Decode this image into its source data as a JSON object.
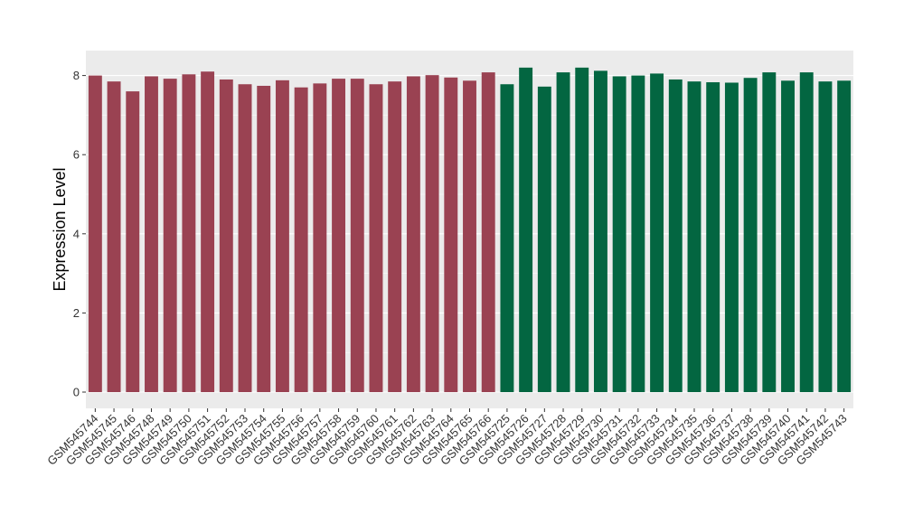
{
  "chart_data": {
    "type": "bar",
    "title": "",
    "xlabel": "",
    "ylabel": "Expression Level",
    "ylim": [
      0,
      8.6
    ],
    "yticks": [
      0,
      2,
      4,
      6,
      8
    ],
    "grid": true,
    "legend": "none",
    "categories": [
      "GSM545744",
      "GSM545745",
      "GSM545746",
      "GSM545748",
      "GSM545749",
      "GSM545750",
      "GSM545751",
      "GSM545752",
      "GSM545753",
      "GSM545754",
      "GSM545755",
      "GSM545756",
      "GSM545757",
      "GSM545758",
      "GSM545759",
      "GSM545760",
      "GSM545761",
      "GSM545762",
      "GSM545763",
      "GSM545764",
      "GSM545765",
      "GSM545766",
      "GSM545725",
      "GSM545726",
      "GSM545727",
      "GSM545728",
      "GSM545729",
      "GSM545730",
      "GSM545731",
      "GSM545732",
      "GSM545733",
      "GSM545734",
      "GSM545735",
      "GSM545736",
      "GSM545737",
      "GSM545738",
      "GSM545739",
      "GSM545740",
      "GSM545741",
      "GSM545742",
      "GSM545743"
    ],
    "values": [
      8.0,
      7.85,
      7.6,
      7.98,
      7.92,
      8.03,
      8.1,
      7.9,
      7.78,
      7.74,
      7.88,
      7.7,
      7.8,
      7.92,
      7.92,
      7.78,
      7.85,
      7.98,
      8.01,
      7.95,
      7.87,
      8.08,
      7.78,
      8.2,
      7.72,
      8.08,
      8.2,
      8.12,
      7.98,
      8.0,
      8.05,
      7.9,
      7.85,
      7.83,
      7.82,
      7.94,
      8.08,
      7.87,
      8.08,
      7.85,
      7.87
    ],
    "groups": [
      {
        "color": "#9a4252",
        "count": 22
      },
      {
        "color": "#036641",
        "count": 19
      }
    ],
    "panel_background": "#ebebeb",
    "gridline_color": "#ffffff"
  }
}
